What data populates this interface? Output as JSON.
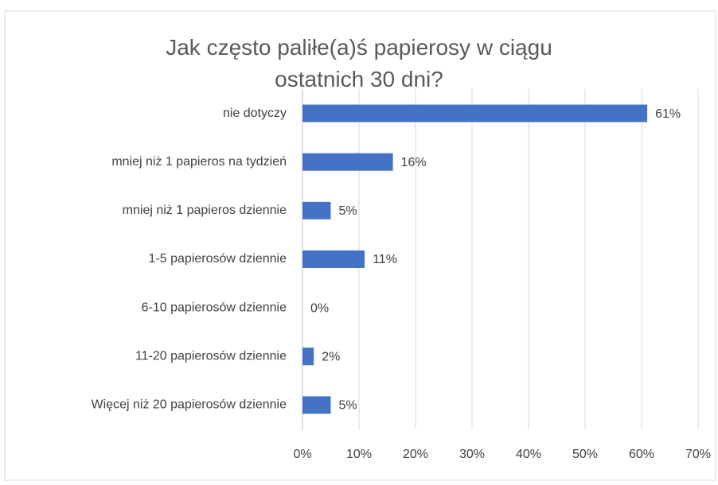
{
  "chart_data": {
    "type": "bar",
    "orientation": "horizontal",
    "title": "Jak często paliłe(a)ś papierosy w ciągu ostatnich 30 dni?",
    "categories": [
      "nie dotyczy",
      "mniej niż 1 papieros na tydzień",
      "mniej niż 1 papieros dziennie",
      "1-5 papierosów dziennie",
      "6-10 papierosów dziennie",
      "11-20 papierosów dziennie",
      "Więcej niż 20 papierosów dziennie"
    ],
    "values": [
      61,
      16,
      5,
      11,
      0,
      2,
      5
    ],
    "value_labels": [
      "61%",
      "16%",
      "5%",
      "11%",
      "0%",
      "2%",
      "5%"
    ],
    "color": "#4472c4",
    "xlim": [
      0,
      70
    ],
    "xticks": [
      {
        "value": 0,
        "label": "0%"
      },
      {
        "value": 10,
        "label": "10%"
      },
      {
        "value": 20,
        "label": "20%"
      },
      {
        "value": 30,
        "label": "30%"
      },
      {
        "value": 40,
        "label": "40%"
      },
      {
        "value": 50,
        "label": "50%"
      },
      {
        "value": 60,
        "label": "60%"
      },
      {
        "value": 70,
        "label": "70%"
      }
    ],
    "grid": true
  }
}
